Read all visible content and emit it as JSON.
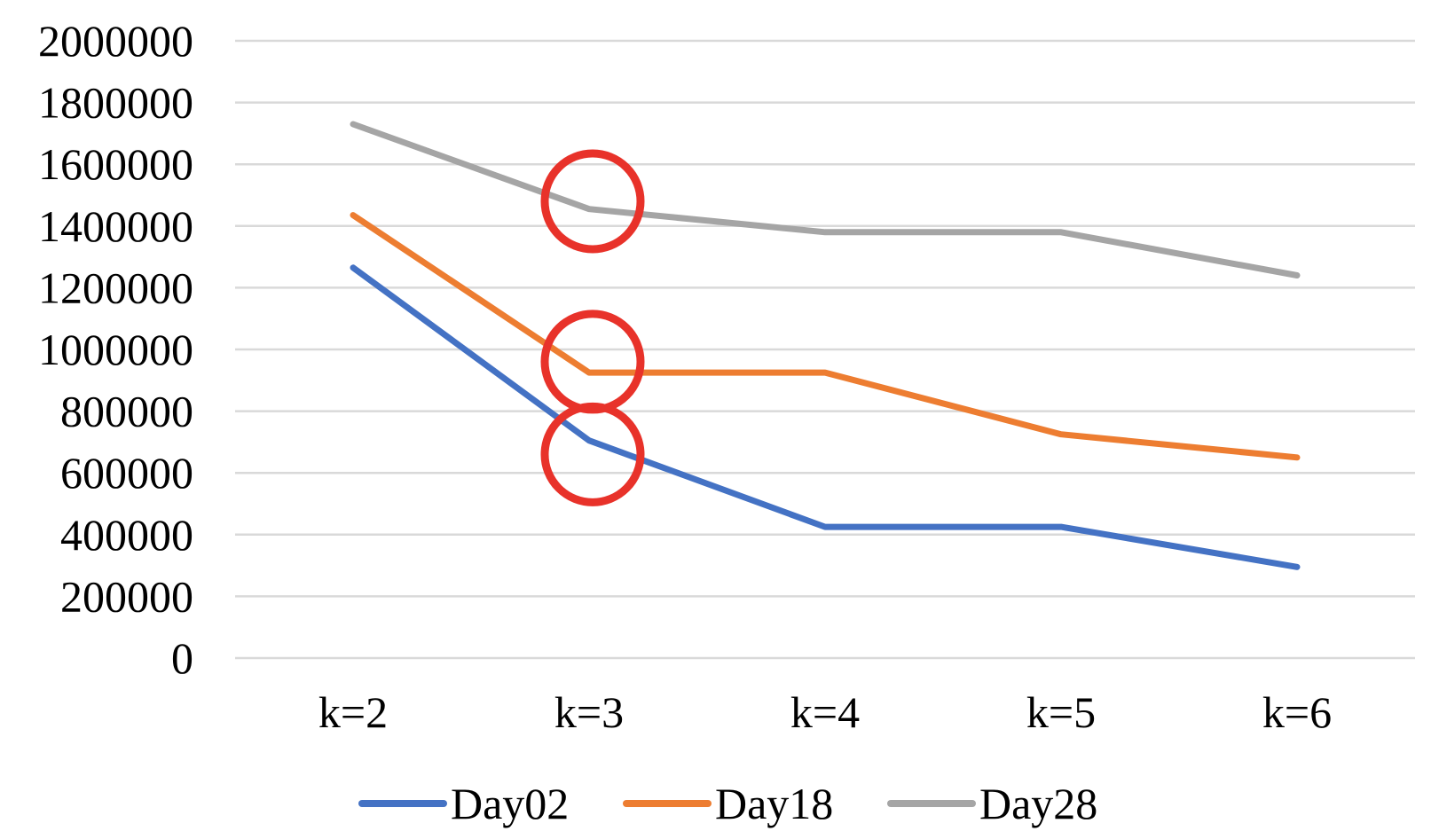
{
  "chart_data": {
    "type": "line",
    "title": "",
    "xlabel": "",
    "ylabel": "",
    "categories": [
      "k=2",
      "k=3",
      "k=4",
      "k=5",
      "k=6"
    ],
    "ylim": [
      0,
      2000000
    ],
    "yticks": [
      0,
      200000,
      400000,
      600000,
      800000,
      1000000,
      1200000,
      1400000,
      1600000,
      1800000,
      2000000
    ],
    "ytick_labels": [
      "0",
      "200000",
      "400000",
      "600000",
      "800000",
      "1000000",
      "1200000",
      "1400000",
      "1600000",
      "1800000",
      "2000000"
    ],
    "grid": true,
    "legend_position": "bottom",
    "series": [
      {
        "name": "Day02",
        "color": "#4472C4",
        "values": [
          1265000,
          705000,
          425000,
          425000,
          295000
        ]
      },
      {
        "name": "Day18",
        "color": "#ED7D31",
        "values": [
          1435000,
          925000,
          925000,
          725000,
          650000
        ]
      },
      {
        "name": "Day28",
        "color": "#A5A5A5",
        "values": [
          1730000,
          1455000,
          1380000,
          1380000,
          1240000
        ]
      }
    ],
    "annotations": [
      {
        "type": "circle",
        "color": "#E8322A",
        "category": "k=3",
        "value": 1480000,
        "label": ""
      },
      {
        "type": "circle",
        "color": "#E8322A",
        "category": "k=3",
        "value": 960000,
        "label": ""
      },
      {
        "type": "circle",
        "color": "#E8322A",
        "category": "k=3",
        "value": 660000,
        "label": ""
      }
    ],
    "gridline_color": "#D9D9D9"
  }
}
